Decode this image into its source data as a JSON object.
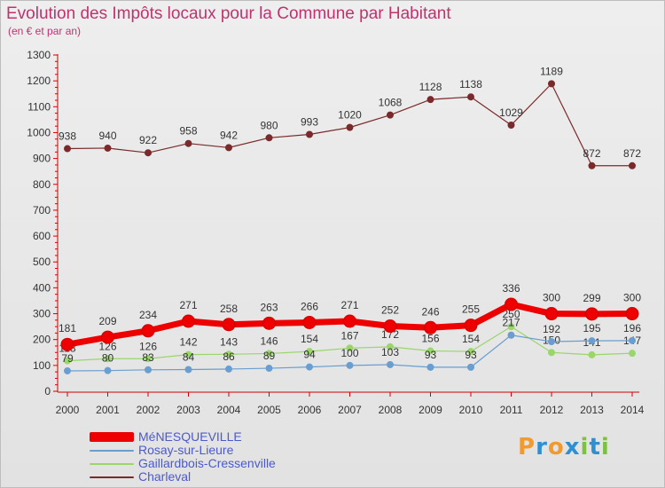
{
  "title": "Evolution des Impôts locaux pour la Commune par Habitant",
  "subtitle": "(en € et par an)",
  "brand": {
    "text": "Proxiti",
    "letter_colors": [
      "#f29a2e",
      "#2f8fd0",
      "#f29a2e",
      "#2f8fd0",
      "#7cc242",
      "#2f8fd0",
      "#7cc242"
    ]
  },
  "chart_data": {
    "type": "line",
    "categories": [
      "2000",
      "2001",
      "2002",
      "2003",
      "2004",
      "2005",
      "2006",
      "2007",
      "2008",
      "2009",
      "2010",
      "2011",
      "2012",
      "2013",
      "2014"
    ],
    "ylim": [
      0,
      1300
    ],
    "yticks": [
      0,
      100,
      200,
      300,
      400,
      500,
      600,
      700,
      800,
      900,
      1000,
      1100,
      1200,
      1300
    ],
    "grid": false,
    "legend_placement": "bottom-left",
    "series": [
      {
        "name": "Charleval",
        "color": "#7a2a2a",
        "values": [
          938,
          940,
          922,
          958,
          942,
          980,
          993,
          1020,
          1068,
          1128,
          1138,
          1029,
          1189,
          872,
          872
        ],
        "labels": [
          "938",
          "940",
          "922",
          "958",
          "942",
          "980",
          "993",
          "1020",
          "1068",
          "1128",
          "1138",
          "1029",
          "1189",
          "872",
          "872"
        ]
      },
      {
        "name": "Gaillardbois-Cressenville",
        "color": "#9ad66a",
        "values": [
          118,
          126,
          126,
          142,
          143,
          146,
          154,
          167,
          172,
          156,
          154,
          250,
          150,
          141,
          147
        ],
        "labels": [
          "118",
          "126",
          "126",
          "142",
          "143",
          "146",
          "154",
          "167",
          "172",
          "156",
          "154",
          "250",
          "150",
          "141",
          "147"
        ]
      },
      {
        "name": "Rosay-sur-Lieure",
        "color": "#6a9ed0",
        "values": [
          79,
          80,
          83,
          84,
          86,
          89,
          94,
          100,
          103,
          93,
          93,
          217,
          192,
          195,
          196
        ],
        "labels": [
          "79",
          "80",
          "83",
          "84",
          "86",
          "89",
          "94",
          "100",
          "103",
          "93",
          "93",
          "217",
          "192",
          "195",
          "196"
        ]
      },
      {
        "name": "MéNESQUEVILLE",
        "color": "#ee0000",
        "values": [
          181,
          209,
          234,
          271,
          258,
          263,
          266,
          271,
          252,
          246,
          255,
          336,
          300,
          299,
          300
        ],
        "labels": [
          "181",
          "209",
          "234",
          "271",
          "258",
          "263",
          "266",
          "271",
          "252",
          "246",
          "255",
          "336",
          "300",
          "299",
          "300"
        ]
      }
    ],
    "legend": [
      "MéNESQUEVILLE",
      "Rosay-sur-Lieure",
      "Gaillardbois-Cressenville",
      "Charleval"
    ]
  }
}
